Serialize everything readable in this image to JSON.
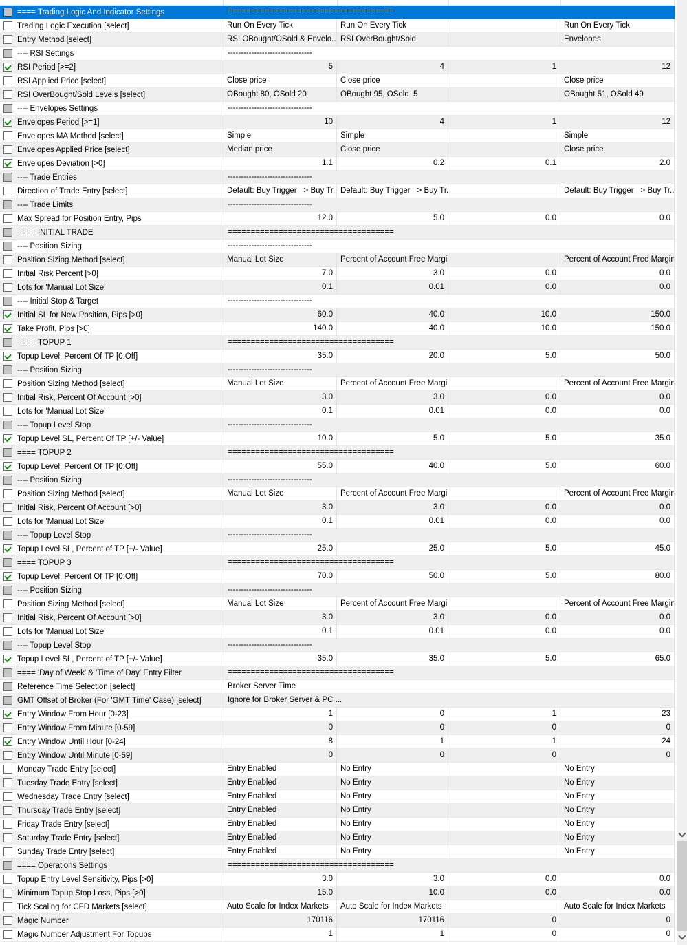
{
  "accent_colors": {
    "selection_blue": "#0078d7",
    "check_green": "#009b00",
    "row_alternate_gray": "#efefef",
    "section_checkbox_gray": "#c3c3c3",
    "scrollbar_track": "#f0f0f0",
    "scrollbar_thumb": "#cdcdcd"
  },
  "icons": {
    "checked_checkbox": "green checkmark",
    "section_checkbox": "gray filled box",
    "scroll_down_icon": "chevron-down"
  },
  "rows": [
    {
      "name": "==== Trading Logic And Indicator Settings",
      "cb": "gray",
      "sel": true,
      "value": "===================================="
    },
    {
      "name": "Trading Logic Execution [select]",
      "cb": "off",
      "cells": [
        "Run On Every Tick",
        "Run On Every Tick",
        "",
        "Run On Every Tick"
      ]
    },
    {
      "name": "Entry Method [select]",
      "cb": "off",
      "cells": [
        "RSI OBought/OSold & Envelo...",
        "RSI OverBought/Sold",
        "",
        "Envelopes"
      ]
    },
    {
      "name": "---- RSI Settings",
      "cb": "gray",
      "value": "--------------------------------"
    },
    {
      "name": "RSI Period [>=2]",
      "cb": "on",
      "num": true,
      "cells": [
        "5",
        "4",
        "1",
        "12"
      ]
    },
    {
      "name": "RSI Applied Price [select]",
      "cb": "off",
      "cells": [
        "Close price",
        "Close price",
        "",
        "Close price"
      ]
    },
    {
      "name": "RSI OverBought/Sold Levels [select]",
      "cb": "off",
      "cells": [
        "OBought 80, OSold 20",
        "OBought 95, OSold  5",
        "",
        "OBought 51, OSold 49"
      ]
    },
    {
      "name": "---- Envelopes Settings",
      "cb": "gray",
      "value": "--------------------------------"
    },
    {
      "name": "Envelopes Period [>=1]",
      "cb": "on",
      "num": true,
      "cells": [
        "10",
        "4",
        "1",
        "12"
      ]
    },
    {
      "name": "Envelopes MA Method [select]",
      "cb": "off",
      "cells": [
        "Simple",
        "Simple",
        "",
        "Simple"
      ]
    },
    {
      "name": "Envelopes Applied Price [select]",
      "cb": "off",
      "cells": [
        "Median price",
        "Close price",
        "",
        "Close price"
      ]
    },
    {
      "name": "Envelopes Deviation [>0]",
      "cb": "on",
      "num": true,
      "cells": [
        "1.1",
        "0.2",
        "0.1",
        "2.0"
      ]
    },
    {
      "name": "---- Trade Entries",
      "cb": "gray",
      "value": "--------------------------------"
    },
    {
      "name": "Direction of Trade Entry [select]",
      "cb": "off",
      "cells": [
        "Default: Buy Trigger => Buy Tr...",
        "Default: Buy Trigger => Buy Tr...",
        "",
        "Default: Buy Trigger => Buy Tr..."
      ]
    },
    {
      "name": "---- Trade Limits",
      "cb": "gray",
      "value": "--------------------------------"
    },
    {
      "name": "Max Spread for Position Entry, Pips",
      "cb": "off",
      "num": true,
      "cells": [
        "12.0",
        "5.0",
        "0.0",
        "0.0"
      ]
    },
    {
      "name": "==== INITIAL TRADE",
      "cb": "gray",
      "value": "===================================="
    },
    {
      "name": "---- Position Sizing",
      "cb": "gray",
      "value": "--------------------------------"
    },
    {
      "name": "Position Sizing Method [select]",
      "cb": "off",
      "cells": [
        "Manual Lot Size",
        "Percent of Account Free Margin",
        "",
        "Percent of Account Free Margin"
      ]
    },
    {
      "name": "Initial Risk Percent [>0]",
      "cb": "off",
      "num": true,
      "cells": [
        "7.0",
        "3.0",
        "0.0",
        "0.0"
      ]
    },
    {
      "name": "Lots for 'Manual Lot Size'",
      "cb": "off",
      "num": true,
      "cells": [
        "0.1",
        "0.01",
        "0.0",
        "0.0"
      ]
    },
    {
      "name": "---- Initial Stop & Target",
      "cb": "gray",
      "value": "--------------------------------"
    },
    {
      "name": "Initial SL for New Position, Pips [>0]",
      "cb": "on",
      "num": true,
      "cells": [
        "60.0",
        "40.0",
        "10.0",
        "150.0"
      ]
    },
    {
      "name": "Take Profit, Pips [>0]",
      "cb": "on",
      "num": true,
      "cells": [
        "140.0",
        "40.0",
        "10.0",
        "150.0"
      ]
    },
    {
      "name": "==== TOPUP 1",
      "cb": "gray",
      "value": "===================================="
    },
    {
      "name": "Topup Level, Percent Of TP [0:Off]",
      "cb": "on",
      "num": true,
      "cells": [
        "35.0",
        "20.0",
        "5.0",
        "50.0"
      ]
    },
    {
      "name": "---- Position Sizing",
      "cb": "gray",
      "value": "--------------------------------"
    },
    {
      "name": "Position Sizing Method [select]",
      "cb": "off",
      "cells": [
        "Manual Lot Size",
        "Percent of Account Free Margin",
        "",
        "Percent of Account Free Margin"
      ]
    },
    {
      "name": "Initial Risk, Percent Of Account [>0]",
      "cb": "off",
      "num": true,
      "cells": [
        "3.0",
        "3.0",
        "0.0",
        "0.0"
      ]
    },
    {
      "name": "Lots for 'Manual Lot Size'",
      "cb": "off",
      "num": true,
      "cells": [
        "0.1",
        "0.01",
        "0.0",
        "0.0"
      ]
    },
    {
      "name": "---- Topup Level Stop",
      "cb": "gray",
      "value": "--------------------------------"
    },
    {
      "name": "Topup Level SL, Percent Of TP [+/- Value]",
      "cb": "on",
      "num": true,
      "cells": [
        "10.0",
        "5.0",
        "5.0",
        "35.0"
      ]
    },
    {
      "name": "==== TOPUP 2",
      "cb": "gray",
      "value": "===================================="
    },
    {
      "name": "Topup Level, Percent Of TP [0:Off]",
      "cb": "on",
      "num": true,
      "cells": [
        "55.0",
        "40.0",
        "5.0",
        "60.0"
      ]
    },
    {
      "name": "---- Position Sizing",
      "cb": "gray",
      "value": "--------------------------------"
    },
    {
      "name": "Position Sizing Method [select]",
      "cb": "off",
      "cells": [
        "Manual Lot Size",
        "Percent of Account Free Margin",
        "",
        "Percent of Account Free Margin"
      ]
    },
    {
      "name": "Initial Risk, Percent Of Account [>0]",
      "cb": "off",
      "num": true,
      "cells": [
        "3.0",
        "3.0",
        "0.0",
        "0.0"
      ]
    },
    {
      "name": "Lots for 'Manual Lot Size'",
      "cb": "off",
      "num": true,
      "cells": [
        "0.1",
        "0.01",
        "0.0",
        "0.0"
      ]
    },
    {
      "name": "---- Topup Level Stop",
      "cb": "gray",
      "value": "--------------------------------"
    },
    {
      "name": "Topup Level SL, Percent of TP [+/- Value]",
      "cb": "on",
      "num": true,
      "cells": [
        "25.0",
        "25.0",
        "5.0",
        "45.0"
      ]
    },
    {
      "name": "==== TOPUP 3",
      "cb": "gray",
      "value": "===================================="
    },
    {
      "name": "Topup Level, Percent Of TP [0:Off]",
      "cb": "on",
      "num": true,
      "cells": [
        "70.0",
        "50.0",
        "5.0",
        "80.0"
      ]
    },
    {
      "name": "---- Position Sizing",
      "cb": "gray",
      "value": "--------------------------------"
    },
    {
      "name": "Position Sizing Method [select]",
      "cb": "off",
      "cells": [
        "Manual Lot Size",
        "Percent of Account Free Margin",
        "",
        "Percent of Account Free Margin"
      ]
    },
    {
      "name": "Initial Risk, Percent Of Account [>0]",
      "cb": "off",
      "num": true,
      "cells": [
        "3.0",
        "3.0",
        "0.0",
        "0.0"
      ]
    },
    {
      "name": "Lots for 'Manual Lot Size'",
      "cb": "off",
      "num": true,
      "cells": [
        "0.1",
        "0.01",
        "0.0",
        "0.0"
      ]
    },
    {
      "name": "---- Topup Level Stop",
      "cb": "gray",
      "value": "--------------------------------"
    },
    {
      "name": "Topup Level SL, Percent of TP [+/- Value]",
      "cb": "on",
      "num": true,
      "cells": [
        "35.0",
        "35.0",
        "5.0",
        "65.0"
      ]
    },
    {
      "name": "==== 'Day of Week' & 'Time of Day' Entry Filter",
      "cb": "gray",
      "value": "===================================="
    },
    {
      "name": "Reference Time Selection [select]",
      "cb": "gray",
      "value": "Broker Server Time"
    },
    {
      "name": "GMT Offset of Broker (For 'GMT Time' Case) [select]",
      "cb": "gray",
      "value": "Ignore for Broker Server & PC ..."
    },
    {
      "name": "Entry Window From Hour [0-23]",
      "cb": "on",
      "num": true,
      "cells": [
        "1",
        "0",
        "1",
        "23"
      ]
    },
    {
      "name": "Entry Window From Minute [0-59]",
      "cb": "off",
      "num": true,
      "cells": [
        "0",
        "0",
        "0",
        "0"
      ]
    },
    {
      "name": "Entry Window Until Hour [0-24]",
      "cb": "on",
      "num": true,
      "cells": [
        "8",
        "1",
        "1",
        "24"
      ]
    },
    {
      "name": "Entry Window Until Minute [0-59]",
      "cb": "off",
      "num": true,
      "cells": [
        "0",
        "0",
        "0",
        "0"
      ]
    },
    {
      "name": "Monday Trade Entry [select]",
      "cb": "off",
      "cells": [
        "Entry Enabled",
        "No Entry",
        "",
        "No Entry"
      ]
    },
    {
      "name": "Tuesday Trade Entry [select]",
      "cb": "off",
      "cells": [
        "Entry Enabled",
        "No Entry",
        "",
        "No Entry"
      ]
    },
    {
      "name": "Wednesday Trade Entry [select]",
      "cb": "off",
      "cells": [
        "Entry Enabled",
        "No Entry",
        "",
        "No Entry"
      ]
    },
    {
      "name": "Thursday Trade Entry [select]",
      "cb": "off",
      "cells": [
        "Entry Enabled",
        "No Entry",
        "",
        "No Entry"
      ]
    },
    {
      "name": "Friday Trade Entry [select]",
      "cb": "off",
      "cells": [
        "Entry Enabled",
        "No Entry",
        "",
        "No Entry"
      ]
    },
    {
      "name": "Saturday Trade Entry [select]",
      "cb": "off",
      "cells": [
        "Entry Enabled",
        "No Entry",
        "",
        "No Entry"
      ]
    },
    {
      "name": "Sunday Trade Entry [select]",
      "cb": "off",
      "cells": [
        "Entry Enabled",
        "No Entry",
        "",
        "No Entry"
      ]
    },
    {
      "name": "==== Operations Settings",
      "cb": "gray",
      "value": "===================================="
    },
    {
      "name": "Topup Entry Level Sensitivity, Pips [>0]",
      "cb": "off",
      "num": true,
      "cells": [
        "3.0",
        "3.0",
        "0.0",
        "0.0"
      ]
    },
    {
      "name": "Minimum Topup Stop Loss, Pips [>0]",
      "cb": "off",
      "num": true,
      "cells": [
        "15.0",
        "10.0",
        "0.0",
        "0.0"
      ]
    },
    {
      "name": "Tick Scaling for CFD Markets [select]",
      "cb": "off",
      "cells": [
        "Auto Scale for Index Markets",
        "Auto Scale for Index Markets",
        "",
        "Auto Scale for Index Markets"
      ]
    },
    {
      "name": "Magic Number",
      "cb": "off",
      "num": true,
      "cells": [
        "170116",
        "170116",
        "0",
        "0"
      ]
    },
    {
      "name": "Magic Number Adjustment For Topups",
      "cb": "off",
      "num": true,
      "cells": [
        "1",
        "1",
        "0",
        "0"
      ]
    }
  ]
}
